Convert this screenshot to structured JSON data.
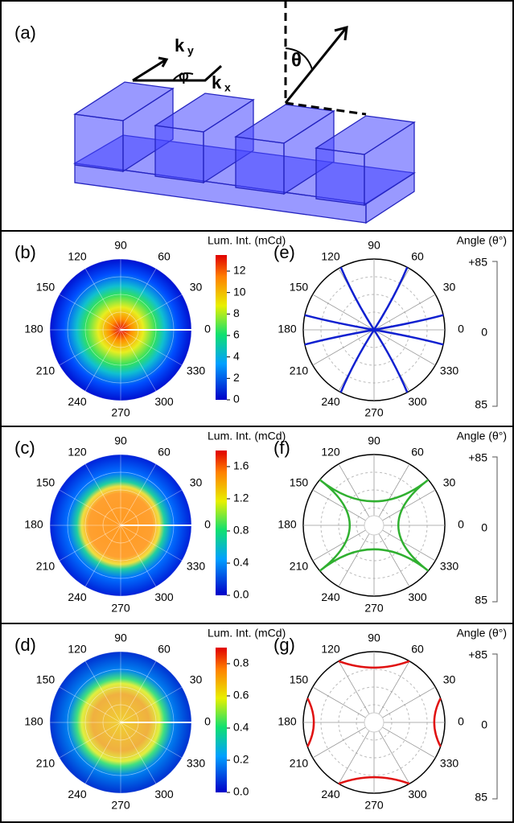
{
  "panel_a": {
    "label": "(a)",
    "ky": "k",
    "ky_sub": "y",
    "kx": "k",
    "kx_sub": "x",
    "phi": "φ",
    "theta": "θ"
  },
  "rows": [
    {
      "left": {
        "label": "(b)",
        "colorbar_title": "Lum. Int. (mCd)",
        "colorbar_ticks": [
          "12",
          "10",
          "8",
          "6",
          "4",
          "2",
          "0"
        ]
      },
      "right": {
        "label": "(e)",
        "axis_title": "Angle (θ°)",
        "axis_ticks": [
          "+85",
          "0",
          "85"
        ]
      }
    },
    {
      "left": {
        "label": "(c)",
        "colorbar_title": "Lum. Int. (mCd)",
        "colorbar_ticks": [
          "1.6",
          "1.2",
          "0.8",
          "0.4",
          "0.0"
        ]
      },
      "right": {
        "label": "(f)",
        "axis_title": "Angle (θ°)",
        "axis_ticks": [
          "+85",
          "0",
          "85"
        ]
      }
    },
    {
      "left": {
        "label": "(d)",
        "colorbar_title": "Lum. Int. (mCd)",
        "colorbar_ticks": [
          "0.8",
          "0.6",
          "0.4",
          "0.2",
          "0.0"
        ]
      },
      "right": {
        "label": "(g)",
        "axis_title": "Angle (θ°)",
        "axis_ticks": [
          "+85",
          "0",
          "85"
        ]
      }
    }
  ],
  "angle_labels": [
    "0",
    "30",
    "60",
    "90",
    "120",
    "150",
    "180",
    "210",
    "240",
    "270",
    "300",
    "330"
  ]
}
